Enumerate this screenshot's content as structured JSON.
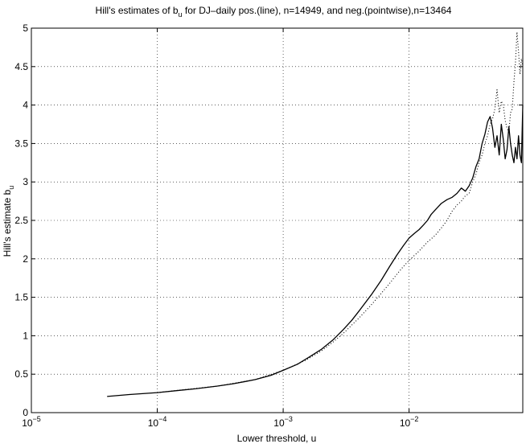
{
  "chart_data": {
    "type": "line",
    "title": "Hill's estimates of b",
    "title_sub": "u",
    "title_rest": " for DJ–daily pos.(line), n=14949, and neg.(pointwise),n=13464",
    "xlabel": "Lower threshold, u",
    "ylabel": "Hill's estimate b",
    "ylabel_sub": "u",
    "x_scale": "log",
    "xlim": [
      1e-05,
      0.08
    ],
    "ylim": [
      0,
      5
    ],
    "grid": true,
    "x_ticks": [
      {
        "value": 1e-05,
        "base": "10",
        "exp": "−5"
      },
      {
        "value": 0.0001,
        "base": "10",
        "exp": "−4"
      },
      {
        "value": 0.001,
        "base": "10",
        "exp": "−3"
      },
      {
        "value": 0.01,
        "base": "10",
        "exp": "−2"
      }
    ],
    "y_ticks": [
      {
        "value": 0,
        "label": "0"
      },
      {
        "value": 0.5,
        "label": "0.5"
      },
      {
        "value": 1,
        "label": "1"
      },
      {
        "value": 1.5,
        "label": "1.5"
      },
      {
        "value": 2,
        "label": "2"
      },
      {
        "value": 2.5,
        "label": "2.5"
      },
      {
        "value": 3,
        "label": "3"
      },
      {
        "value": 3.5,
        "label": "3.5"
      },
      {
        "value": 4,
        "label": "4"
      },
      {
        "value": 4.5,
        "label": "4.5"
      },
      {
        "value": 5,
        "label": "5"
      }
    ],
    "series": [
      {
        "style": "solid",
        "color": "#000000",
        "x": [
          4e-05,
          6e-05,
          0.0001,
          0.00015,
          0.0002,
          0.0003,
          0.0004,
          0.0005,
          0.0006,
          0.0008,
          0.001,
          0.0013,
          0.0016,
          0.002,
          0.0025,
          0.003,
          0.0035,
          0.004,
          0.005,
          0.006,
          0.007,
          0.008,
          0.009,
          0.01,
          0.011,
          0.012,
          0.013,
          0.014,
          0.015,
          0.016,
          0.018,
          0.02,
          0.022,
          0.024,
          0.026,
          0.028,
          0.03,
          0.032,
          0.034,
          0.036,
          0.038,
          0.04,
          0.042,
          0.044,
          0.046,
          0.048,
          0.05,
          0.052,
          0.054,
          0.056,
          0.058,
          0.06,
          0.062,
          0.064,
          0.066,
          0.068,
          0.07,
          0.072,
          0.074,
          0.076,
          0.078,
          0.08
        ],
        "y": [
          0.21,
          0.235,
          0.26,
          0.29,
          0.31,
          0.345,
          0.375,
          0.405,
          0.43,
          0.485,
          0.55,
          0.63,
          0.72,
          0.82,
          0.95,
          1.08,
          1.2,
          1.32,
          1.53,
          1.72,
          1.9,
          2.05,
          2.17,
          2.27,
          2.33,
          2.38,
          2.44,
          2.5,
          2.58,
          2.63,
          2.72,
          2.77,
          2.8,
          2.85,
          2.92,
          2.88,
          2.95,
          3.05,
          3.2,
          3.3,
          3.5,
          3.62,
          3.78,
          3.85,
          3.7,
          3.45,
          3.6,
          3.35,
          3.75,
          3.55,
          3.3,
          3.42,
          3.72,
          3.5,
          3.35,
          3.25,
          3.45,
          3.3,
          3.6,
          3.35,
          3.25,
          4.0
        ]
      },
      {
        "style": "dotted",
        "color": "#000000",
        "x": [
          0.0001,
          0.0003,
          0.0006,
          0.001,
          0.0015,
          0.002,
          0.0025,
          0.003,
          0.004,
          0.005,
          0.006,
          0.007,
          0.008,
          0.009,
          0.01,
          0.012,
          0.014,
          0.016,
          0.018,
          0.02,
          0.022,
          0.024,
          0.026,
          0.028,
          0.03,
          0.032,
          0.034,
          0.036,
          0.038,
          0.04,
          0.042,
          0.044,
          0.046,
          0.048,
          0.05,
          0.052,
          0.054,
          0.056,
          0.058,
          0.06,
          0.062,
          0.064,
          0.066,
          0.068,
          0.07,
          0.072,
          0.074,
          0.076,
          0.078,
          0.08
        ],
        "y": [
          0.26,
          0.345,
          0.43,
          0.55,
          0.68,
          0.8,
          0.92,
          1.03,
          1.23,
          1.4,
          1.55,
          1.68,
          1.8,
          1.9,
          1.98,
          2.1,
          2.22,
          2.3,
          2.4,
          2.5,
          2.62,
          2.7,
          2.75,
          2.82,
          2.85,
          3.0,
          3.1,
          3.25,
          3.35,
          3.5,
          3.6,
          3.75,
          3.82,
          3.95,
          4.2,
          3.9,
          4.05,
          4.0,
          3.8,
          3.7,
          3.65,
          3.9,
          3.95,
          4.3,
          4.55,
          4.95,
          4.7,
          4.4,
          4.6,
          4.5
        ]
      }
    ]
  }
}
